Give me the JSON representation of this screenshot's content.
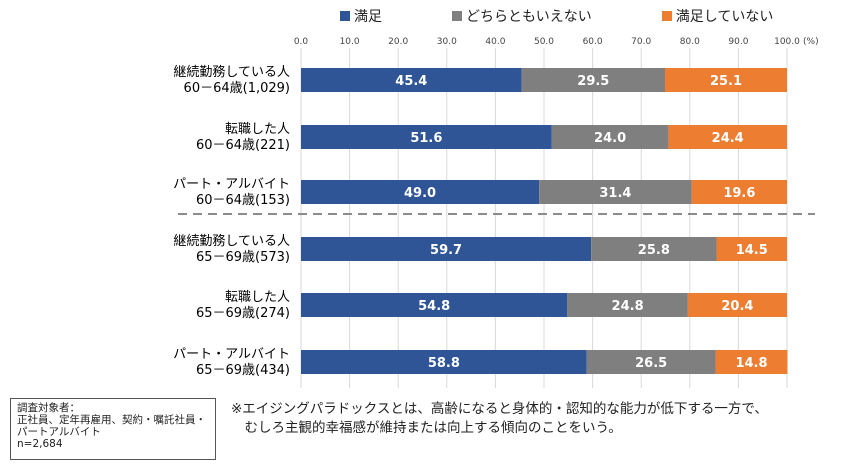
{
  "chart_data": {
    "type": "bar",
    "orientation": "horizontal",
    "stacked": true,
    "categories": [
      [
        "継続勤務している人",
        "60－64歳(1,029)"
      ],
      [
        "転職した人",
        "60－64歳(221)"
      ],
      [
        "パート・アルバイト",
        "60－64歳(153)"
      ],
      [
        "継続勤務している人",
        "65－69歳(573)"
      ],
      [
        "転職した人",
        "65－69歳(274)"
      ],
      [
        "パート・アルバイト",
        "65－69歳(434)"
      ]
    ],
    "series": [
      {
        "name": "満足",
        "color": "#2F5597",
        "values": [
          45.4,
          51.6,
          49.0,
          59.7,
          54.8,
          58.8
        ]
      },
      {
        "name": "どちらともいえない",
        "color": "#7F7F7F",
        "values": [
          29.5,
          24.0,
          31.4,
          25.8,
          24.8,
          26.5
        ]
      },
      {
        "name": "満足していない",
        "color": "#ED7D31",
        "values": [
          25.1,
          24.4,
          19.6,
          14.5,
          20.4,
          14.8
        ]
      }
    ],
    "xlim": [
      0,
      100
    ],
    "xticks": [
      "0.0",
      "10.0",
      "20.0",
      "30.0",
      "40.0",
      "50.0",
      "60.0",
      "70.0",
      "80.0",
      "90.0",
      "100.0"
    ],
    "x_unit": "(%)",
    "grid": true,
    "legend_position": "top"
  },
  "info_box": {
    "lines": [
      "調査対象者：",
      "正社員、定年再雇用、契約・嘱託社員・",
      "パートアルバイト",
      "n=2,684"
    ]
  },
  "note": {
    "line1": "※エイジングパラドックスとは、高齢になると身体的・認知的な能力が低下する一方で、",
    "line2": "　むしろ主観的幸福感が維持または向上する傾向のことをいう。"
  }
}
